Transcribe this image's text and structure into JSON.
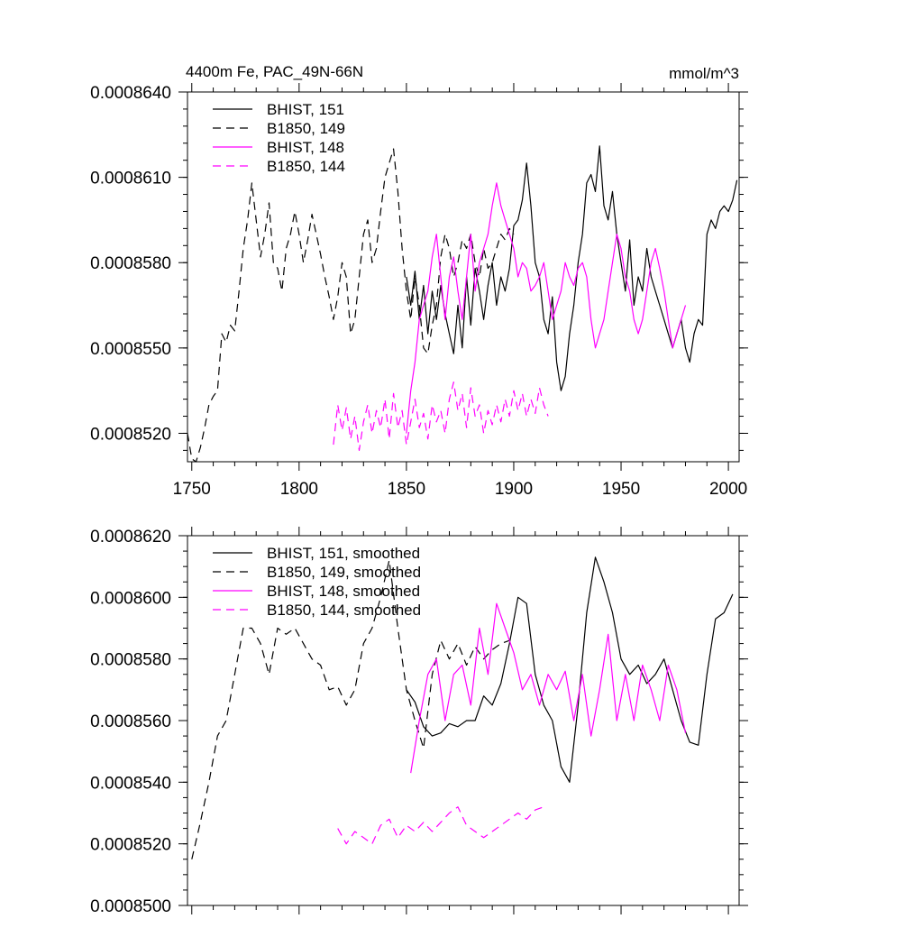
{
  "colors": {
    "black": "#000000",
    "magenta": "#ff00ff"
  },
  "chart_data": [
    {
      "type": "line",
      "title": "4400m Fe, PAC_49N-66N",
      "units": "mmol/m^3",
      "xlim": [
        1748,
        2005
      ],
      "ylim": [
        0.000851,
        0.000864
      ],
      "x_ticks": [
        "1750",
        "1800",
        "1850",
        "1900",
        "1950",
        "2000"
      ],
      "y_ticks": [
        "0.0008520",
        "0.0008550",
        "0.0008580",
        "0.0008610",
        "0.0008640"
      ],
      "legend_position": "top-left",
      "series": [
        {
          "name": "BHIST, 151",
          "color": "#000000",
          "dash": "solid",
          "x": [
            1850,
            1852,
            1854,
            1856,
            1858,
            1860,
            1862,
            1864,
            1866,
            1868,
            1870,
            1872,
            1874,
            1876,
            1878,
            1880,
            1882,
            1884,
            1886,
            1888,
            1890,
            1892,
            1894,
            1896,
            1898,
            1900,
            1902,
            1904,
            1906,
            1908,
            1910,
            1912,
            1914,
            1916,
            1918,
            1920,
            1922,
            1924,
            1926,
            1928,
            1930,
            1932,
            1934,
            1936,
            1938,
            1940,
            1942,
            1944,
            1946,
            1948,
            1950,
            1952,
            1954,
            1956,
            1958,
            1960,
            1962,
            1964,
            1966,
            1968,
            1970,
            1972,
            1974,
            1976,
            1978,
            1980,
            1982,
            1984,
            1986,
            1988,
            1990,
            1992,
            1994,
            1996,
            1998,
            2000,
            2002,
            2004
          ],
          "values": [
            0.0008575,
            0.0008565,
            0.0008577,
            0.000856,
            0.0008572,
            0.0008555,
            0.000857,
            0.000856,
            0.0008572,
            0.0008562,
            0.0008555,
            0.0008548,
            0.0008565,
            0.000855,
            0.0008575,
            0.0008558,
            0.0008578,
            0.000857,
            0.000856,
            0.0008572,
            0.000858,
            0.0008565,
            0.0008575,
            0.000857,
            0.0008578,
            0.0008593,
            0.0008595,
            0.0008602,
            0.0008615,
            0.00086,
            0.000858,
            0.0008575,
            0.000856,
            0.0008555,
            0.0008568,
            0.0008545,
            0.0008535,
            0.000854,
            0.0008555,
            0.0008565,
            0.000858,
            0.000859,
            0.0008608,
            0.0008611,
            0.0008605,
            0.0008621,
            0.00086,
            0.0008595,
            0.0008605,
            0.000859,
            0.000858,
            0.000857,
            0.0008588,
            0.0008565,
            0.0008575,
            0.000857,
            0.0008585,
            0.0008575,
            0.000857,
            0.0008565,
            0.000856,
            0.0008555,
            0.000855,
            0.0008555,
            0.000856,
            0.000855,
            0.0008545,
            0.0008555,
            0.000856,
            0.0008558,
            0.000859,
            0.0008595,
            0.0008592,
            0.0008598,
            0.00086,
            0.0008598,
            0.0008602,
            0.0008609
          ]
        },
        {
          "name": "B1850, 149",
          "color": "#000000",
          "dash": "dashed",
          "x": [
            1748,
            1750,
            1752,
            1754,
            1756,
            1758,
            1760,
            1762,
            1764,
            1766,
            1768,
            1770,
            1772,
            1774,
            1776,
            1778,
            1780,
            1782,
            1784,
            1786,
            1788,
            1790,
            1792,
            1794,
            1796,
            1798,
            1800,
            1802,
            1804,
            1806,
            1808,
            1810,
            1812,
            1814,
            1816,
            1818,
            1820,
            1822,
            1824,
            1826,
            1828,
            1830,
            1832,
            1834,
            1836,
            1838,
            1840,
            1842,
            1844,
            1846,
            1848,
            1850,
            1852,
            1854,
            1856,
            1858,
            1860,
            1862,
            1864,
            1866,
            1868,
            1870,
            1872,
            1874,
            1876,
            1878,
            1880,
            1882,
            1884,
            1886,
            1888,
            1890,
            1892,
            1894,
            1896,
            1898,
            1900
          ],
          "values": [
            0.000852,
            0.0008511,
            0.000851,
            0.0008515,
            0.0008522,
            0.000853,
            0.0008533,
            0.0008535,
            0.0008555,
            0.0008552,
            0.0008558,
            0.0008556,
            0.000857,
            0.0008585,
            0.0008595,
            0.0008608,
            0.0008595,
            0.0008582,
            0.000859,
            0.0008601,
            0.000858,
            0.0008578,
            0.000857,
            0.0008585,
            0.000859,
            0.0008598,
            0.000859,
            0.000858,
            0.0008588,
            0.0008597,
            0.000859,
            0.0008583,
            0.0008575,
            0.0008568,
            0.000856,
            0.0008568,
            0.000858,
            0.0008575,
            0.0008555,
            0.000856,
            0.0008575,
            0.000859,
            0.0008595,
            0.000858,
            0.0008585,
            0.0008598,
            0.000861,
            0.0008615,
            0.000862,
            0.0008605,
            0.0008585,
            0.000857,
            0.000856,
            0.0008575,
            0.0008565,
            0.000855,
            0.0008548,
            0.0008558,
            0.0008565,
            0.0008582,
            0.000859,
            0.0008585,
            0.0008575,
            0.000858,
            0.0008588,
            0.0008585,
            0.000859,
            0.000858,
            0.0008575,
            0.0008585,
            0.0008578,
            0.000858,
            0.0008585,
            0.000859,
            0.0008588,
            0.0008592,
            0.000859
          ]
        },
        {
          "name": "BHIST, 148",
          "color": "#ff00ff",
          "dash": "solid",
          "x": [
            1850,
            1852,
            1854,
            1856,
            1858,
            1860,
            1862,
            1864,
            1866,
            1868,
            1870,
            1872,
            1874,
            1876,
            1878,
            1880,
            1882,
            1884,
            1886,
            1888,
            1890,
            1892,
            1894,
            1896,
            1898,
            1900,
            1902,
            1904,
            1906,
            1908,
            1910,
            1912,
            1914,
            1916,
            1918,
            1920,
            1922,
            1924,
            1926,
            1928,
            1930,
            1932,
            1934,
            1936,
            1938,
            1940,
            1942,
            1944,
            1946,
            1948,
            1950,
            1952,
            1954,
            1956,
            1958,
            1960,
            1962,
            1964,
            1966,
            1968,
            1970,
            1972,
            1974,
            1976,
            1978,
            1980
          ],
          "values": [
            0.000852,
            0.0008535,
            0.0008545,
            0.000856,
            0.0008565,
            0.000857,
            0.0008582,
            0.000859,
            0.0008575,
            0.000856,
            0.0008575,
            0.0008582,
            0.000857,
            0.000856,
            0.0008575,
            0.000859,
            0.000857,
            0.000858,
            0.0008585,
            0.000859,
            0.00086,
            0.0008608,
            0.00086,
            0.0008595,
            0.000859,
            0.0008585,
            0.0008575,
            0.000858,
            0.0008578,
            0.000857,
            0.0008572,
            0.0008575,
            0.000858,
            0.000857,
            0.000856,
            0.0008565,
            0.000857,
            0.000858,
            0.0008575,
            0.0008572,
            0.0008578,
            0.000858,
            0.0008575,
            0.000856,
            0.000855,
            0.0008555,
            0.000856,
            0.000857,
            0.000858,
            0.000859,
            0.0008585,
            0.0008575,
            0.000857,
            0.000856,
            0.0008555,
            0.000856,
            0.000857,
            0.000858,
            0.0008585,
            0.0008578,
            0.000857,
            0.000856,
            0.000855,
            0.0008555,
            0.000856,
            0.0008565
          ]
        },
        {
          "name": "B1850, 144",
          "color": "#ff00ff",
          "dash": "dashed",
          "x": [
            1816,
            1818,
            1820,
            1822,
            1824,
            1826,
            1828,
            1830,
            1832,
            1834,
            1836,
            1838,
            1840,
            1842,
            1844,
            1846,
            1848,
            1850,
            1852,
            1854,
            1856,
            1858,
            1860,
            1862,
            1864,
            1866,
            1868,
            1870,
            1872,
            1874,
            1876,
            1878,
            1880,
            1882,
            1884,
            1886,
            1888,
            1890,
            1892,
            1894,
            1896,
            1898,
            1900,
            1902,
            1904,
            1906,
            1908,
            1910,
            1912,
            1914,
            1916
          ],
          "values": [
            0.0008516,
            0.000853,
            0.0008521,
            0.0008529,
            0.0008518,
            0.0008526,
            0.0008514,
            0.0008524,
            0.000853,
            0.000852,
            0.0008528,
            0.0008522,
            0.0008532,
            0.0008518,
            0.0008534,
            0.0008522,
            0.0008528,
            0.0008516,
            0.0008524,
            0.0008532,
            0.0008522,
            0.0008527,
            0.0008518,
            0.000853,
            0.0008524,
            0.0008528,
            0.000852,
            0.0008532,
            0.0008538,
            0.0008528,
            0.0008534,
            0.0008522,
            0.0008536,
            0.0008526,
            0.000853,
            0.000852,
            0.0008528,
            0.0008523,
            0.000853,
            0.0008524,
            0.0008532,
            0.0008526,
            0.0008535,
            0.0008528,
            0.0008534,
            0.0008526,
            0.0008532,
            0.0008527,
            0.0008536,
            0.000853,
            0.0008526
          ]
        }
      ]
    },
    {
      "type": "line",
      "title": "",
      "xlim": [
        1748,
        2005
      ],
      "ylim": [
        0.00085,
        0.000862
      ],
      "x_ticks": [],
      "y_ticks": [
        "0.0008500",
        "0.0008520",
        "0.0008540",
        "0.0008560",
        "0.0008580",
        "0.0008600",
        "0.0008620"
      ],
      "legend_position": "top-left",
      "series": [
        {
          "name": "BHIST, 151, smoothed",
          "color": "#000000",
          "dash": "solid",
          "x": [
            1850,
            1854,
            1858,
            1862,
            1866,
            1870,
            1874,
            1878,
            1882,
            1886,
            1890,
            1894,
            1898,
            1902,
            1906,
            1910,
            1914,
            1918,
            1922,
            1926,
            1930,
            1934,
            1938,
            1942,
            1946,
            1950,
            1954,
            1958,
            1962,
            1966,
            1970,
            1974,
            1978,
            1982,
            1986,
            1990,
            1994,
            1998,
            2002
          ],
          "values": [
            0.000857,
            0.0008566,
            0.0008558,
            0.0008555,
            0.0008556,
            0.0008559,
            0.0008558,
            0.000856,
            0.000856,
            0.0008568,
            0.0008565,
            0.0008572,
            0.0008585,
            0.00086,
            0.0008598,
            0.0008575,
            0.0008565,
            0.000856,
            0.0008545,
            0.000854,
            0.0008565,
            0.0008595,
            0.0008613,
            0.0008605,
            0.0008595,
            0.000858,
            0.0008575,
            0.0008578,
            0.0008572,
            0.0008575,
            0.000858,
            0.000857,
            0.000856,
            0.0008553,
            0.0008552,
            0.0008575,
            0.0008593,
            0.0008595,
            0.0008601
          ]
        },
        {
          "name": "B1850, 149, smoothed",
          "color": "#000000",
          "dash": "dashed",
          "x": [
            1750,
            1754,
            1758,
            1762,
            1766,
            1770,
            1774,
            1778,
            1782,
            1786,
            1790,
            1794,
            1798,
            1802,
            1806,
            1810,
            1814,
            1818,
            1822,
            1826,
            1830,
            1834,
            1838,
            1842,
            1846,
            1850,
            1854,
            1858,
            1862,
            1866,
            1870,
            1874,
            1878,
            1882,
            1886,
            1890,
            1894,
            1898
          ],
          "values": [
            0.0008515,
            0.0008527,
            0.000854,
            0.0008555,
            0.000856,
            0.0008575,
            0.000859,
            0.000859,
            0.0008585,
            0.0008575,
            0.000859,
            0.0008588,
            0.000859,
            0.0008585,
            0.000858,
            0.0008578,
            0.000857,
            0.0008571,
            0.0008565,
            0.000857,
            0.0008585,
            0.000859,
            0.00086,
            0.0008612,
            0.000859,
            0.000857,
            0.000856,
            0.0008551,
            0.0008575,
            0.0008586,
            0.000858,
            0.0008585,
            0.0008578,
            0.0008584,
            0.000858,
            0.0008583,
            0.0008585,
            0.0008586
          ]
        },
        {
          "name": "BHIST, 148, smoothed",
          "color": "#ff00ff",
          "dash": "solid",
          "x": [
            1852,
            1856,
            1860,
            1864,
            1868,
            1872,
            1876,
            1880,
            1884,
            1888,
            1892,
            1896,
            1900,
            1904,
            1908,
            1912,
            1916,
            1920,
            1924,
            1928,
            1932,
            1936,
            1940,
            1944,
            1948,
            1952,
            1956,
            1960,
            1964,
            1968,
            1972,
            1976,
            1980
          ],
          "values": [
            0.0008543,
            0.000856,
            0.0008575,
            0.000858,
            0.000856,
            0.0008575,
            0.0008578,
            0.0008565,
            0.000859,
            0.0008575,
            0.0008598,
            0.000859,
            0.0008582,
            0.000857,
            0.0008575,
            0.0008565,
            0.0008575,
            0.000857,
            0.0008576,
            0.000856,
            0.0008575,
            0.0008555,
            0.000857,
            0.0008588,
            0.000856,
            0.0008575,
            0.000856,
            0.0008578,
            0.000857,
            0.000856,
            0.0008578,
            0.000857,
            0.0008556
          ]
        },
        {
          "name": "B1850, 144, smoothed",
          "color": "#ff00ff",
          "dash": "dashed",
          "x": [
            1818,
            1822,
            1826,
            1830,
            1834,
            1838,
            1842,
            1846,
            1850,
            1854,
            1858,
            1862,
            1866,
            1870,
            1874,
            1878,
            1882,
            1886,
            1890,
            1894,
            1898,
            1902,
            1906,
            1910,
            1914
          ],
          "values": [
            0.0008525,
            0.000852,
            0.0008524,
            0.0008522,
            0.000852,
            0.0008526,
            0.0008528,
            0.0008522,
            0.0008526,
            0.0008524,
            0.0008527,
            0.0008524,
            0.0008527,
            0.000853,
            0.0008532,
            0.0008526,
            0.0008524,
            0.0008522,
            0.0008524,
            0.0008526,
            0.0008528,
            0.000853,
            0.0008528,
            0.0008531,
            0.0008532
          ]
        }
      ]
    }
  ]
}
